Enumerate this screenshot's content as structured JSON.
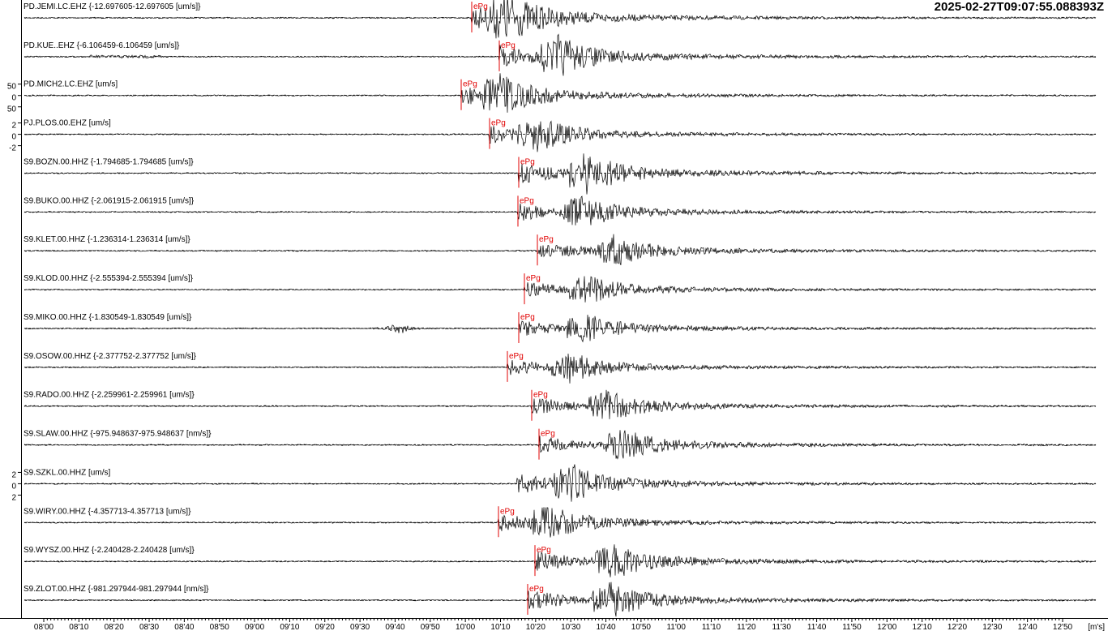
{
  "timestamp": "2025-02-27T09:07:55.088393Z",
  "traces": [
    {
      "label": "PD.JEMI.LC.EHZ {-12.697605-12.697605 [um/s]}",
      "pick": "ePg"
    },
    {
      "label": "PD.KUE..EHZ {-6.106459-6.106459 [um/s]}",
      "pick": "ePg"
    },
    {
      "label": "PD.MICH2.LC.EHZ [um/s]",
      "pick": "ePg",
      "scale": [
        "50",
        "0",
        "50"
      ]
    },
    {
      "label": "PJ.PLOS.00.EHZ [um/s]",
      "pick": "ePg",
      "scale": [
        "2",
        "0",
        "-2"
      ]
    },
    {
      "label": "S9.BOZN.00.HHZ {-1.794685-1.794685 [um/s]}",
      "pick": "ePg"
    },
    {
      "label": "S9.BUKO.00.HHZ {-2.061915-2.061915 [um/s]}",
      "pick": "ePg"
    },
    {
      "label": "S9.KLET.00.HHZ {-1.236314-1.236314 [um/s]}",
      "pick": "ePg"
    },
    {
      "label": "S9.KLOD.00.HHZ {-2.555394-2.555394 [um/s]}",
      "pick": "ePg"
    },
    {
      "label": "S9.MIKO.00.HHZ {-1.830549-1.830549 [um/s]}",
      "pick": "ePg"
    },
    {
      "label": "S9.OSOW.00.HHZ {-2.377752-2.377752 [um/s]}",
      "pick": "ePg"
    },
    {
      "label": "S9.RADO.00.HHZ {-2.259961-2.259961 [um/s]}",
      "pick": "ePg"
    },
    {
      "label": "S9.SLAW.00.HHZ {-975.948637-975.948637 [nm/s]}",
      "pick": "ePg"
    },
    {
      "label": "S9.SZKL.00.HHZ [um/s]",
      "scale": [
        "2",
        "0",
        "2"
      ]
    },
    {
      "label": "S9.WIRY.00.HHZ {-4.357713-4.357713 [um/s]}",
      "pick": "ePg"
    },
    {
      "label": "S9.WYSZ.00.HHZ {-2.240428-2.240428 [um/s]}",
      "pick": "ePg"
    },
    {
      "label": "S9.ZLOT.00.HHZ {-981.297944-981.297944 [nm/s]}",
      "pick": "ePg"
    }
  ],
  "time_axis": {
    "labels": [
      "08'00",
      "08'10",
      "08'20",
      "08'30",
      "08'40",
      "08'50",
      "09'00",
      "09'10",
      "09'20",
      "09'30",
      "09'40",
      "09'50",
      "10'00",
      "10'10",
      "10'20",
      "10'30",
      "10'40",
      "10'50",
      "11'00",
      "11'10",
      "11'20",
      "11'30",
      "11'40",
      "11'50",
      "12'00",
      "12'10",
      "12'20",
      "12'30",
      "12'40",
      "12'50"
    ],
    "unit": "[m's]"
  }
}
